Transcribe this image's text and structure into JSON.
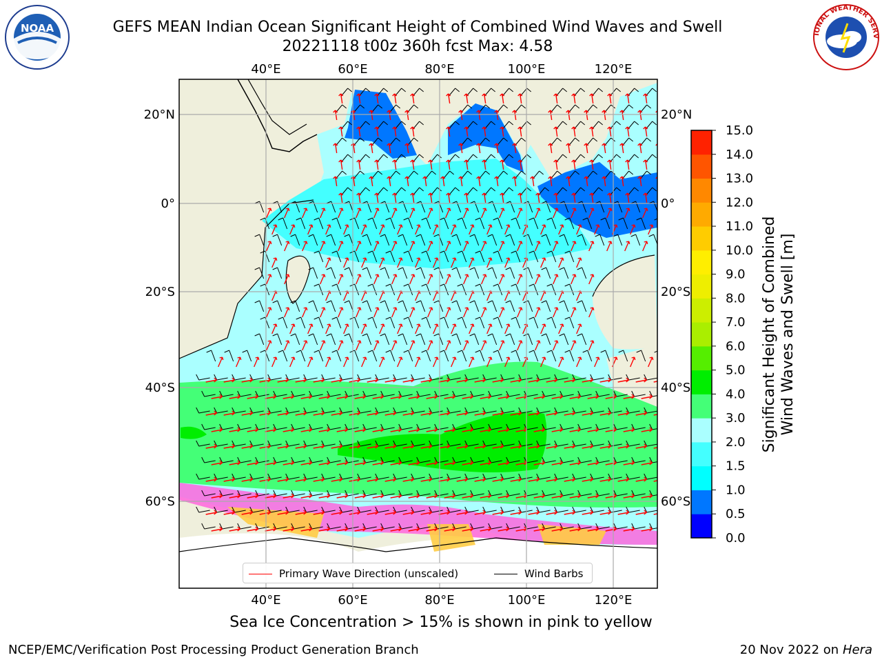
{
  "title_line1": "GEFS MEAN Indian Ocean Significant Height of Combined Wind Waves and Swell",
  "title_line2": "20221118 t00z 360h fcst   Max: 4.58",
  "lon_labels": [
    "40°E",
    "60°E",
    "80°E",
    "100°E",
    "120°E"
  ],
  "lat_labels": [
    "20°N",
    "0°",
    "20°S",
    "40°S",
    "60°S"
  ],
  "colorbar": {
    "label_line1": "Significant Height of Combined",
    "label_line2": "Wind Waves and Swell [m]",
    "ticks": [
      "0.0",
      "0.5",
      "1.0",
      "1.5",
      "2.0",
      "3.0",
      "4.0",
      "5.0",
      "6.0",
      "7.0",
      "8.0",
      "9.0",
      "10.0",
      "11.0",
      "12.0",
      "13.0",
      "14.0",
      "15.0"
    ],
    "colors": [
      "#0000ff",
      "#0077ff",
      "#00ffff",
      "#44ffff",
      "#aaffff",
      "#44ff77",
      "#00ee00",
      "#55ee00",
      "#aaee00",
      "#ccee00",
      "#eeee00",
      "#ffee00",
      "#ffcc00",
      "#ffaa00",
      "#ff8800",
      "#ff5500",
      "#ff2200"
    ]
  },
  "legend": {
    "wave_direction": "Primary Wave Direction (unscaled)",
    "wind_barbs": "Wind Barbs"
  },
  "logos": {
    "left": "NOAA",
    "right": "NATIONAL WEATHER SERVICE"
  },
  "subtitle": "Sea Ice Concentration > 15% is shown in pink to yellow",
  "footer_left": "NCEP/EMC/Verification Post Processing Product Generation Branch",
  "footer_date": "20 Nov 2022 on",
  "footer_machine": "Hera"
}
